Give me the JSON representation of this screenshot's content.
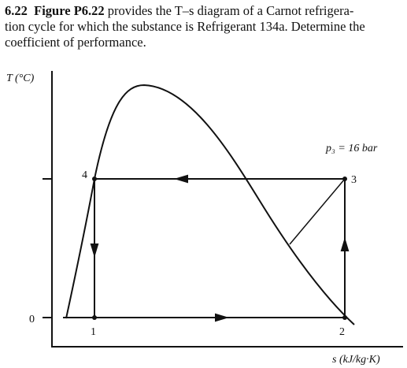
{
  "problem": {
    "number": "6.22",
    "figure": "Figure P6.22",
    "lines": [
      "provides the T–s diagram of a Carnot refrigera-",
      "tion cycle for which the substance is Refrigerant 134a. Determine the",
      "coefficient of performance."
    ]
  },
  "diagram": {
    "y_axis_label": "T (°C)",
    "x_axis_label": "s (kJ/kg·K)",
    "y_tick": "0",
    "pressure_label": "p₃ = 16 bar",
    "points": [
      "1",
      "2",
      "3",
      "4"
    ]
  }
}
